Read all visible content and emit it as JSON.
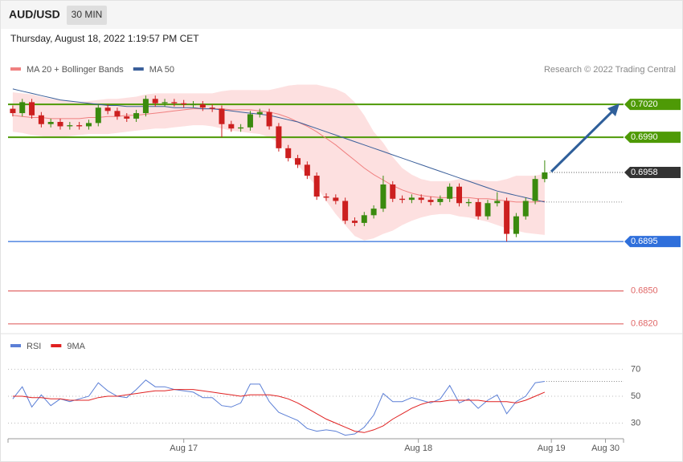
{
  "header": {
    "symbol": "AUD/USD",
    "timeframe": "30 MIN",
    "date": "Thursday, August 18, 2022 1:19:57 PM CET"
  },
  "chart_data": [
    {
      "type": "candlestick",
      "source": "Research © 2022 Trading Central",
      "up_color": "#3a8a0e",
      "down_color": "#cc1f1f",
      "ylim": [
        0.6814,
        0.7042
      ],
      "open": [
        0.7016,
        0.7012,
        0.7022,
        0.701,
        0.7002,
        0.7004,
        0.7,
        0.7001,
        0.7,
        0.7003,
        0.7017,
        0.7014,
        0.7009,
        0.7007,
        0.7012,
        0.7025,
        0.7021,
        0.7022,
        0.7021,
        0.702,
        0.702,
        0.7017,
        0.7016,
        0.7002,
        0.6998,
        0.6999,
        0.7011,
        0.7013,
        0.7,
        0.698,
        0.6971,
        0.6965,
        0.6955,
        0.6936,
        0.6935,
        0.6932,
        0.6914,
        0.6912,
        0.6919,
        0.6925,
        0.6947,
        0.6934,
        0.6933,
        0.6935,
        0.6933,
        0.6931,
        0.6934,
        0.6945,
        0.693,
        0.6931,
        0.6918,
        0.693,
        0.6932,
        0.6902,
        0.6918,
        0.6932,
        0.6952
      ],
      "high": [
        0.7019,
        0.7025,
        0.7025,
        0.7013,
        0.7007,
        0.7007,
        0.7004,
        0.7004,
        0.7006,
        0.702,
        0.702,
        0.7017,
        0.7012,
        0.7015,
        0.7028,
        0.7028,
        0.7025,
        0.7025,
        0.7024,
        0.7023,
        0.7023,
        0.702,
        0.7019,
        0.7005,
        0.7002,
        0.7014,
        0.7016,
        0.7016,
        0.7003,
        0.6983,
        0.6974,
        0.6968,
        0.6958,
        0.6939,
        0.6938,
        0.6935,
        0.6917,
        0.6922,
        0.6928,
        0.6955,
        0.695,
        0.6937,
        0.6938,
        0.6938,
        0.6936,
        0.6937,
        0.6948,
        0.6948,
        0.6934,
        0.6934,
        0.6933,
        0.694,
        0.6935,
        0.6921,
        0.6935,
        0.6955,
        0.6969
      ],
      "low": [
        0.7009,
        0.7009,
        0.7007,
        0.6999,
        0.6999,
        0.6997,
        0.6997,
        0.6997,
        0.6997,
        0.7,
        0.7011,
        0.7006,
        0.7004,
        0.7004,
        0.7009,
        0.7018,
        0.7018,
        0.7018,
        0.7017,
        0.7017,
        0.7014,
        0.7013,
        0.699,
        0.6995,
        0.6995,
        0.6996,
        0.7008,
        0.6997,
        0.6977,
        0.6968,
        0.6962,
        0.6952,
        0.6933,
        0.6932,
        0.6929,
        0.6911,
        0.6909,
        0.6909,
        0.6916,
        0.6922,
        0.6931,
        0.693,
        0.693,
        0.693,
        0.6928,
        0.6928,
        0.6931,
        0.6927,
        0.6927,
        0.6915,
        0.6915,
        0.6927,
        0.6895,
        0.6899,
        0.6915,
        0.6929,
        0.6949
      ],
      "close": [
        0.7012,
        0.7022,
        0.701,
        0.7002,
        0.7004,
        0.7,
        0.7001,
        0.7,
        0.7003,
        0.7017,
        0.7014,
        0.7009,
        0.7007,
        0.7012,
        0.7025,
        0.7021,
        0.7022,
        0.7021,
        0.702,
        0.702,
        0.7017,
        0.7016,
        0.7002,
        0.6998,
        0.6999,
        0.7011,
        0.7013,
        0.7,
        0.698,
        0.6971,
        0.6965,
        0.6955,
        0.6936,
        0.6935,
        0.6932,
        0.6914,
        0.6912,
        0.6919,
        0.6925,
        0.6947,
        0.6934,
        0.6933,
        0.6935,
        0.6933,
        0.6931,
        0.6934,
        0.6945,
        0.693,
        0.6931,
        0.6918,
        0.693,
        0.6932,
        0.6902,
        0.6918,
        0.6932,
        0.6952,
        0.6958
      ],
      "series": [
        {
          "name": "MA 20 + Bollinger Bands",
          "color": "#f08080",
          "band_color": "#fde0e0",
          "values": [
            0.701,
            0.7009,
            0.7008,
            0.7008,
            0.7007,
            0.7007,
            0.7007,
            0.7007,
            0.7008,
            0.7008,
            0.7009,
            0.7009,
            0.701,
            0.701,
            0.7011,
            0.7012,
            0.7013,
            0.7014,
            0.7015,
            0.7016,
            0.7016,
            0.7016,
            0.7016,
            0.7015,
            0.7015,
            0.7015,
            0.7014,
            0.7013,
            0.7011,
            0.7008,
            0.7004,
            0.7,
            0.6995,
            0.6989,
            0.6983,
            0.6976,
            0.6969,
            0.6962,
            0.6956,
            0.6951,
            0.6946,
            0.6942,
            0.6939,
            0.6937,
            0.6936,
            0.6935,
            0.6935,
            0.6935,
            0.6935,
            0.6934,
            0.6934,
            0.6933,
            0.6932,
            0.6931,
            0.6931,
            0.6931,
            0.6932
          ],
          "upper": [
            0.7031,
            0.703,
            0.7029,
            0.7027,
            0.7025,
            0.7024,
            0.7023,
            0.7022,
            0.7023,
            0.7024,
            0.7025,
            0.7025,
            0.7026,
            0.7027,
            0.7029,
            0.703,
            0.703,
            0.703,
            0.703,
            0.703,
            0.703,
            0.703,
            0.7032,
            0.7033,
            0.7033,
            0.7033,
            0.7033,
            0.7033,
            0.7035,
            0.7037,
            0.7038,
            0.7038,
            0.7038,
            0.7036,
            0.7034,
            0.703,
            0.7022,
            0.701,
            0.6995,
            0.6985,
            0.6972,
            0.6962,
            0.6956,
            0.6952,
            0.695,
            0.695,
            0.695,
            0.6952,
            0.6951,
            0.6951,
            0.695,
            0.695,
            0.6952,
            0.6955,
            0.6955,
            0.6955,
            0.6957
          ],
          "lower": [
            0.6995,
            0.6994,
            0.6992,
            0.6991,
            0.699,
            0.699,
            0.6991,
            0.6992,
            0.6993,
            0.6993,
            0.6993,
            0.6994,
            0.6995,
            0.6996,
            0.6997,
            0.6998,
            0.6998,
            0.6999,
            0.7,
            0.7001,
            0.7001,
            0.7,
            0.6998,
            0.6996,
            0.6995,
            0.6994,
            0.6993,
            0.699,
            0.6985,
            0.6975,
            0.6965,
            0.6955,
            0.6945,
            0.6932,
            0.692,
            0.691,
            0.69,
            0.6896,
            0.6898,
            0.6902,
            0.6905,
            0.691,
            0.6914,
            0.6917,
            0.6919,
            0.692,
            0.692,
            0.6918,
            0.6917,
            0.6915,
            0.6913,
            0.691,
            0.6907,
            0.6905,
            0.6903,
            0.6902,
            0.6901
          ]
        },
        {
          "name": "MA 50",
          "color": "#3a5f9a",
          "values": [
            0.7034,
            0.7032,
            0.703,
            0.7028,
            0.7026,
            0.7024,
            0.7023,
            0.7022,
            0.7021,
            0.702,
            0.7019,
            0.7019,
            0.7018,
            0.7018,
            0.7018,
            0.7018,
            0.7018,
            0.7017,
            0.7017,
            0.7017,
            0.7016,
            0.7016,
            0.7015,
            0.7014,
            0.7013,
            0.7012,
            0.7011,
            0.701,
            0.7008,
            0.7006,
            0.7004,
            0.7001,
            0.6998,
            0.6995,
            0.6992,
            0.6989,
            0.6986,
            0.6983,
            0.698,
            0.6977,
            0.6974,
            0.6971,
            0.6968,
            0.6965,
            0.6962,
            0.6959,
            0.6956,
            0.6953,
            0.695,
            0.6947,
            0.6944,
            0.6941,
            0.6939,
            0.6937,
            0.6935,
            0.6933,
            0.6931
          ]
        }
      ],
      "levels": [
        {
          "value": 0.702,
          "label": "0.7020",
          "color": "#4e9a06",
          "style": "tag"
        },
        {
          "value": 0.699,
          "label": "0.6990",
          "color": "#4e9a06",
          "style": "tag"
        },
        {
          "value": 0.6958,
          "label": "0.6958",
          "color": "#333333",
          "style": "current"
        },
        {
          "value": 0.6895,
          "label": "0.6895",
          "color": "#2f6fdb",
          "style": "tag"
        },
        {
          "value": 0.685,
          "label": "0.6850",
          "color": "#e06666",
          "style": "text"
        },
        {
          "value": 0.682,
          "label": "0.6820",
          "color": "#e06666",
          "style": "text"
        }
      ]
    },
    {
      "type": "line",
      "xlim": [
        -0.5,
        64.3
      ],
      "xticks": [
        {
          "value": 18,
          "label": "Aug 17"
        },
        {
          "value": 42.7,
          "label": "Aug 18"
        },
        {
          "value": 56.7,
          "label": "Aug 19"
        },
        {
          "value": 62.4,
          "label": "Aug 30"
        }
      ],
      "ylim": [
        19,
        78
      ],
      "yticks": [
        30,
        50,
        70
      ],
      "grid": true,
      "series": [
        {
          "name": "RSI",
          "color": "#5b7fd6",
          "values": [
            48,
            57,
            42,
            51,
            43,
            48,
            46,
            48,
            50,
            60,
            54,
            50,
            49,
            55,
            62,
            57,
            57,
            55,
            54,
            53,
            49,
            49,
            43,
            42,
            45,
            59,
            59,
            46,
            38,
            35,
            32,
            26,
            24,
            25,
            24,
            21,
            22,
            27,
            36,
            52,
            46,
            46,
            49,
            47,
            45,
            48,
            58,
            45,
            48,
            41,
            47,
            51,
            37,
            46,
            50,
            60,
            61
          ]
        },
        {
          "name": "9MA",
          "color": "#e02020",
          "values": [
            50,
            50,
            49,
            49,
            48,
            48,
            47,
            47,
            47,
            49,
            50,
            50,
            51,
            52,
            53,
            54,
            54,
            55,
            55,
            55,
            54,
            53,
            52,
            51,
            50,
            51,
            51,
            51,
            50,
            48,
            45,
            41,
            37,
            33,
            30,
            27,
            24,
            23,
            25,
            28,
            33,
            37,
            41,
            44,
            46,
            46,
            47,
            47,
            47,
            47,
            46,
            46,
            46,
            45,
            47,
            50,
            53
          ]
        }
      ]
    }
  ]
}
